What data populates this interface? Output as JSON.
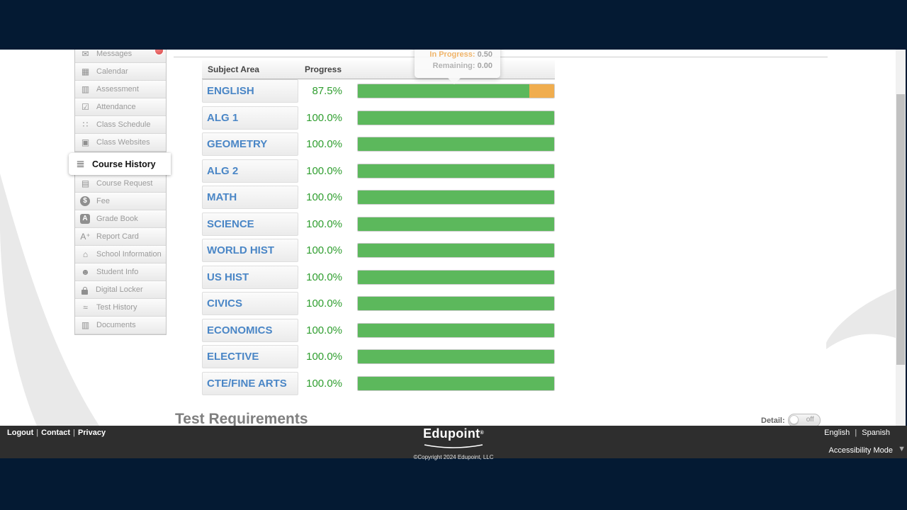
{
  "colors": {
    "navy": "#041a33",
    "footer_bg": "#2e2e2e",
    "bar_complete": "#5cb85c",
    "bar_in_progress": "#f0ad4e",
    "subject_link_blue": "#4a86c6",
    "percent_green": "#2f9e2f"
  },
  "sidebar": {
    "top_items": [
      {
        "label": "Messages",
        "glyph": "✉"
      },
      {
        "label": "Calendar",
        "glyph": "▦"
      },
      {
        "label": "Assessment",
        "glyph": "▥"
      },
      {
        "label": "Attendance",
        "glyph": "☑"
      },
      {
        "label": "Class Schedule",
        "glyph": "∷"
      },
      {
        "label": "Class Websites",
        "glyph": "▣"
      }
    ],
    "selected_item": {
      "label": "Course History",
      "glyph": "≣"
    },
    "bottom_items": [
      {
        "label": "Course Request",
        "glyph": "▤"
      },
      {
        "label": "Fee",
        "glyph": "$"
      },
      {
        "label": "Grade Book",
        "glyph": "A"
      },
      {
        "label": "Report Card",
        "glyph": "A⁺"
      },
      {
        "label": "School Information",
        "glyph": "⌂"
      },
      {
        "label": "Student Info",
        "glyph": "☻"
      },
      {
        "label": "Digital Locker",
        "glyph": ""
      },
      {
        "label": "Test History",
        "glyph": "≈"
      },
      {
        "label": "Documents",
        "glyph": "▥"
      }
    ]
  },
  "tooltip": {
    "in_progress_label": "In Progress:",
    "in_progress_value": "0.50",
    "remaining_label": "Remaining:",
    "remaining_value": "0.00"
  },
  "table": {
    "headers": [
      "Subject Area",
      "Progress"
    ],
    "rows": [
      {
        "subject": "ENGLISH",
        "percent": "87.5%",
        "complete_pct": 87.5,
        "in_progress_pct": 12.5
      },
      {
        "subject": "ALG 1",
        "percent": "100.0%",
        "complete_pct": 100,
        "in_progress_pct": 0
      },
      {
        "subject": "GEOMETRY",
        "percent": "100.0%",
        "complete_pct": 100,
        "in_progress_pct": 0
      },
      {
        "subject": "ALG 2",
        "percent": "100.0%",
        "complete_pct": 100,
        "in_progress_pct": 0
      },
      {
        "subject": "MATH",
        "percent": "100.0%",
        "complete_pct": 100,
        "in_progress_pct": 0
      },
      {
        "subject": "SCIENCE",
        "percent": "100.0%",
        "complete_pct": 100,
        "in_progress_pct": 0
      },
      {
        "subject": "WORLD HIST",
        "percent": "100.0%",
        "complete_pct": 100,
        "in_progress_pct": 0
      },
      {
        "subject": "US HIST",
        "percent": "100.0%",
        "complete_pct": 100,
        "in_progress_pct": 0
      },
      {
        "subject": "CIVICS",
        "percent": "100.0%",
        "complete_pct": 100,
        "in_progress_pct": 0
      },
      {
        "subject": "ECONOMICS",
        "percent": "100.0%",
        "complete_pct": 100,
        "in_progress_pct": 0
      },
      {
        "subject": "ELECTIVE",
        "percent": "100.0%",
        "complete_pct": 100,
        "in_progress_pct": 0
      },
      {
        "subject": "CTE/FINE ARTS",
        "percent": "100.0%",
        "complete_pct": 100,
        "in_progress_pct": 0
      }
    ]
  },
  "section": {
    "heading": "Test Requirements"
  },
  "detail_toggle": {
    "label": "Detail:",
    "state": "off"
  },
  "footer": {
    "separator": "|",
    "links": [
      "Logout",
      "Contact",
      "Privacy"
    ],
    "logo": "Edupoint",
    "logo_mark": "®",
    "copyright": "©Copyright 2024 Edupoint, LLC",
    "lang_left": "English",
    "lang_right": "Spanish",
    "accessibility": "Accessibility Mode",
    "collapse_arrow": "▼"
  }
}
